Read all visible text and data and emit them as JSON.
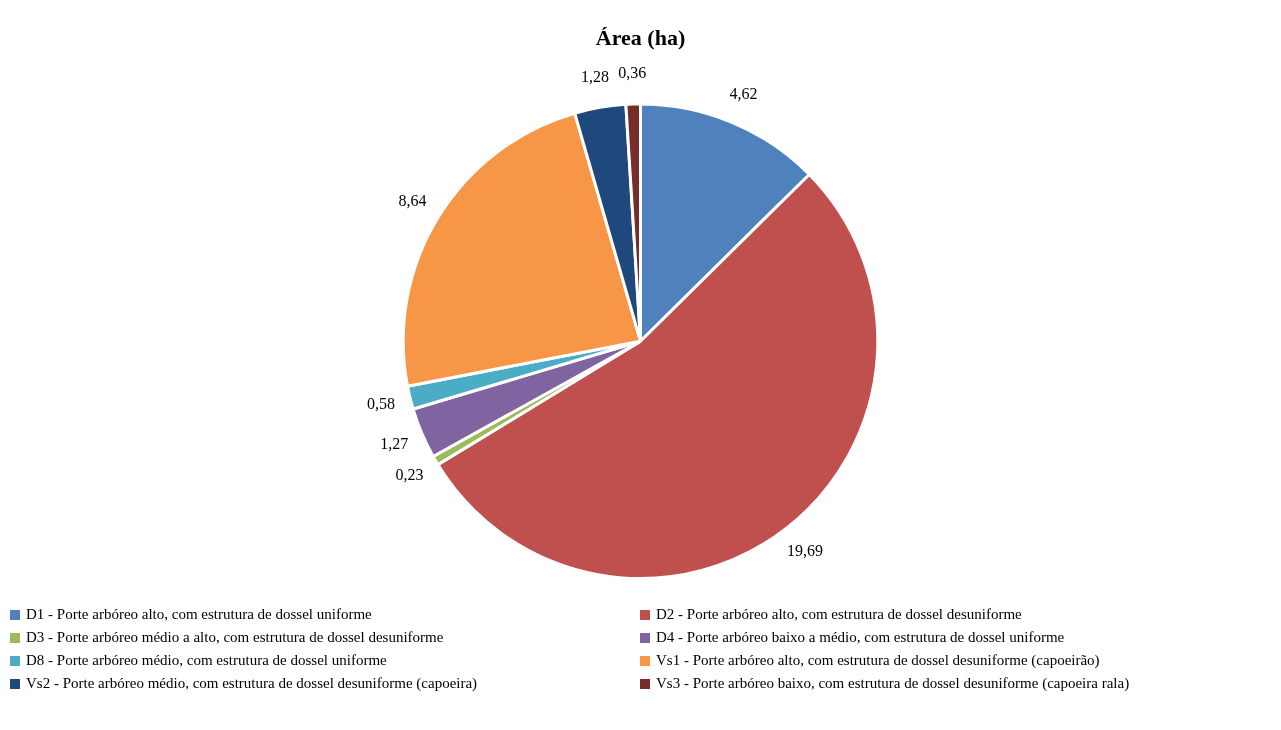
{
  "chart_data": {
    "type": "pie",
    "title": "Área (ha)",
    "categories": [
      "D1 - Porte arbóreo alto, com estrutura de dossel uniforme",
      "D2 - Porte arbóreo alto, com estrutura de dossel desuniforme",
      "D3 - Porte arbóreo médio a alto, com estrutura de dossel desuniforme",
      "D4 - Porte arbóreo baixo a médio, com estrutura de dossel uniforme",
      "D8 - Porte arbóreo médio, com estrutura de dossel uniforme",
      "Vs1 - Porte arbóreo alto, com estrutura de dossel desuniforme (capoeirão)",
      "Vs2 - Porte arbóreo médio, com estrutura de dossel desuniforme (capoeira)",
      "Vs3 - Porte arbóreo baixo, com estrutura de dossel desuniforme (capoeira rala)"
    ],
    "values": [
      4.62,
      19.69,
      0.23,
      1.27,
      0.58,
      8.64,
      1.28,
      0.36
    ],
    "value_labels": [
      "4,62",
      "19,69",
      "0,23",
      "1,27",
      "0,58",
      "8,64",
      "1,28",
      "0,36"
    ],
    "colors": [
      "#4f81bd",
      "#c0504d",
      "#9bbb59",
      "#8064a2",
      "#4bacc6",
      "#f79646",
      "#1f497d",
      "#772c2a"
    ],
    "legend": "bottom"
  }
}
